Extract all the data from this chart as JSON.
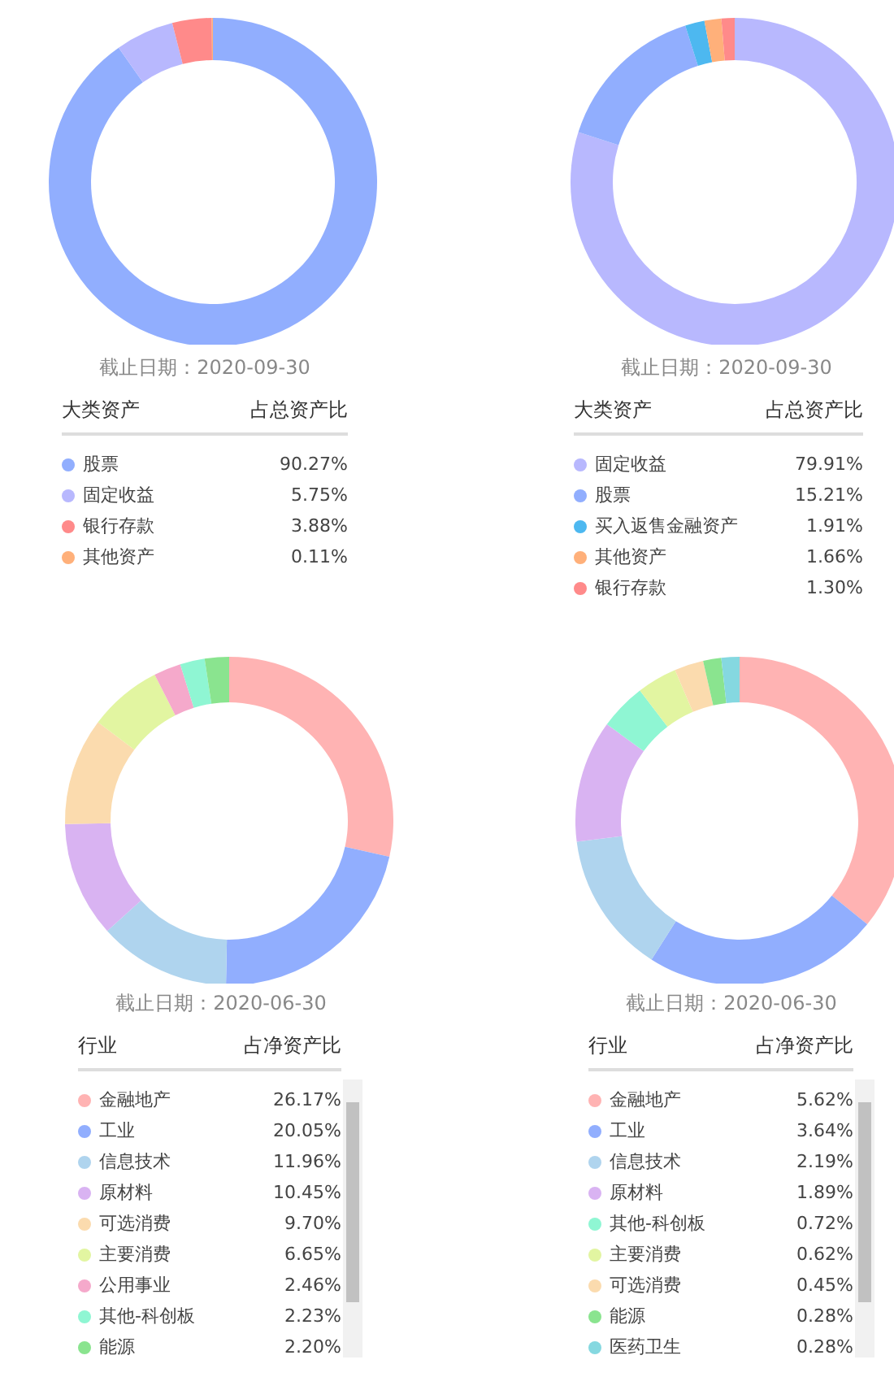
{
  "chart_data": [
    {
      "type": "donut",
      "subtitle": "截止日期：2020-09-30",
      "legend_title": "大类资产",
      "annotations": [
        "占总资产比"
      ],
      "legend": "bottom",
      "categories": [
        "股票",
        "固定收益",
        "银行存款",
        "其他资产"
      ],
      "values": [
        90.27,
        5.75,
        3.88,
        0.11
      ],
      "value_labels": [
        "90.27%",
        "5.75%",
        "3.88%",
        "0.11%"
      ],
      "colors": [
        "#91aefe",
        "#b8b8fe",
        "#ff8a8a",
        "#ffb07a"
      ]
    },
    {
      "type": "donut",
      "subtitle": "截止日期：2020-09-30",
      "legend_title": "大类资产",
      "annotations": [
        "占总资产比"
      ],
      "legend": "bottom",
      "categories": [
        "固定收益",
        "股票",
        "买入返售金融资产",
        "其他资产",
        "银行存款"
      ],
      "values": [
        79.91,
        15.21,
        1.91,
        1.66,
        1.3
      ],
      "value_labels": [
        "79.91%",
        "15.21%",
        "1.91%",
        "1.66%",
        "1.30%"
      ],
      "colors": [
        "#b8b8fe",
        "#91aefe",
        "#4db8f0",
        "#ffb07a",
        "#ff8a8a"
      ]
    },
    {
      "type": "donut",
      "subtitle": "截止日期：2020-06-30",
      "legend_title": "行业",
      "annotations": [
        "占净资产比"
      ],
      "legend": "bottom",
      "categories": [
        "金融地产",
        "工业",
        "信息技术",
        "原材料",
        "可选消费",
        "主要消费",
        "公用事业",
        "其他-科创板",
        "能源"
      ],
      "values": [
        26.17,
        20.05,
        11.96,
        10.45,
        9.7,
        6.65,
        2.46,
        2.23,
        2.2
      ],
      "value_labels": [
        "26.17%",
        "20.05%",
        "11.96%",
        "10.45%",
        "9.70%",
        "6.65%",
        "2.46%",
        "2.23%",
        "2.20%"
      ],
      "colors": [
        "#ffb3b3",
        "#91aefe",
        "#afd4ee",
        "#d9b3f2",
        "#fbdbae",
        "#e2f5a1",
        "#f5a9cb",
        "#8ff6d3",
        "#8ae48f"
      ]
    },
    {
      "type": "donut",
      "subtitle": "截止日期：2020-06-30",
      "legend_title": "行业",
      "annotations": [
        "占净资产比"
      ],
      "legend": "bottom",
      "categories": [
        "金融地产",
        "工业",
        "信息技术",
        "原材料",
        "其他-科创板",
        "主要消费",
        "可选消费",
        "能源",
        "医药卫生"
      ],
      "values": [
        5.62,
        3.64,
        2.19,
        1.89,
        0.72,
        0.62,
        0.45,
        0.28,
        0.28
      ],
      "value_labels": [
        "5.62%",
        "3.64%",
        "2.19%",
        "1.89%",
        "0.72%",
        "0.62%",
        "0.45%",
        "0.28%",
        "0.28%"
      ],
      "colors": [
        "#ffb3b3",
        "#91aefe",
        "#afd4ee",
        "#d9b3f2",
        "#8ff6d3",
        "#e2f5a1",
        "#fbdbae",
        "#8ae48f",
        "#85d8e0"
      ]
    }
  ]
}
